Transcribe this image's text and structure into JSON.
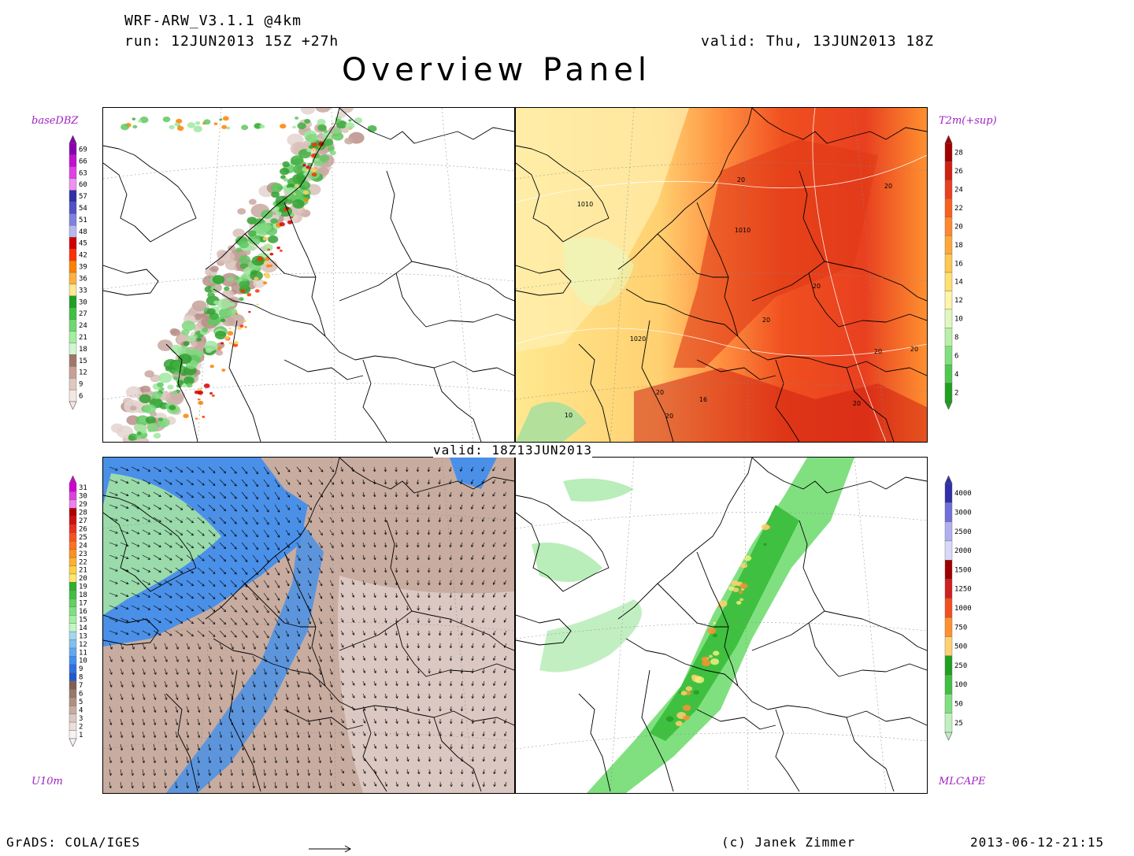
{
  "header": {
    "model": "WRF-ARW_V3.1.1 @4km",
    "run": "run: 12JUN2013 15Z +27h",
    "valid": "valid: Thu, 13JUN2013 18Z",
    "title": "Overview Panel"
  },
  "valid_mid": "valid: 18Z13JUN2013",
  "panels": {
    "top_left": {
      "var_label": "baseDBZ"
    },
    "top_right": {
      "var_label": "T2m(+sup)",
      "isobar_labels": [
        "1010",
        "1010",
        "1020",
        "20",
        "20",
        "20",
        "20",
        "20",
        "20",
        "20",
        "20",
        "20",
        "10",
        "16"
      ]
    },
    "bottom_left": {
      "var_label": "U10m"
    },
    "bottom_right": {
      "var_label": "MLCAPE"
    }
  },
  "colorbars": {
    "dbz": {
      "labels": [
        "69",
        "66",
        "63",
        "60",
        "57",
        "54",
        "51",
        "48",
        "45",
        "42",
        "39",
        "36",
        "33",
        "30",
        "27",
        "24",
        "21",
        "18",
        "15",
        "12",
        "9",
        "6"
      ],
      "colors": [
        "#8a00b0",
        "#c010d0",
        "#e040e8",
        "#f090f0",
        "#3030a8",
        "#5050c8",
        "#8080e0",
        "#b8b8f0",
        "#d00000",
        "#ff3000",
        "#ff8000",
        "#ffb040",
        "#ffe890",
        "#20a020",
        "#40c040",
        "#70d870",
        "#a0f0a0",
        "#d0f8d0",
        "#a07868",
        "#c8a098",
        "#e0c8c0",
        "#f4e8e4"
      ]
    },
    "t2m": {
      "labels": [
        "28",
        "26",
        "24",
        "22",
        "20",
        "18",
        "16",
        "14",
        "12",
        "10",
        "8",
        "6",
        "4",
        "2"
      ],
      "colors": [
        "#a00000",
        "#d02010",
        "#e84020",
        "#f86020",
        "#ff8830",
        "#ffa838",
        "#ffc850",
        "#ffe070",
        "#fff4a8",
        "#e0f8c0",
        "#b8f0a8",
        "#80e080",
        "#50c850",
        "#20a020"
      ]
    },
    "u10": {
      "labels": [
        "31",
        "30",
        "29",
        "28",
        "27",
        "26",
        "25",
        "24",
        "23",
        "22",
        "21",
        "20",
        "19",
        "18",
        "17",
        "16",
        "15",
        "14",
        "13",
        "12",
        "11",
        "10",
        "9",
        "8",
        "7",
        "6",
        "5",
        "4",
        "3",
        "2",
        "1"
      ],
      "colors": [
        "#d000d0",
        "#e040e0",
        "#f080f0",
        "#b00000",
        "#d01010",
        "#e83020",
        "#f85020",
        "#ff7020",
        "#ff9020",
        "#ffb030",
        "#ffd040",
        "#ffe870",
        "#30b030",
        "#40c040",
        "#60d060",
        "#80e080",
        "#a0f0a0",
        "#c0f8c0",
        "#a0d8f0",
        "#80c0f0",
        "#60a8f0",
        "#4090f0",
        "#3070e0",
        "#2058d0",
        "#806050",
        "#987868",
        "#b09080",
        "#c8aca0",
        "#dcc8c0",
        "#ece0dc",
        "#f8f2f0"
      ]
    },
    "cape": {
      "labels": [
        "4000",
        "3000",
        "2500",
        "2000",
        "1500",
        "1250",
        "1000",
        "750",
        "500",
        "250",
        "100",
        "50",
        "25"
      ],
      "colors": [
        "#3030a8",
        "#7070d8",
        "#b0b0f0",
        "#d8d8f8",
        "#a00000",
        "#d02020",
        "#f05020",
        "#ff9030",
        "#ffd070",
        "#20a020",
        "#40c040",
        "#80e080",
        "#c0f0c0"
      ]
    }
  },
  "footer": {
    "left": "GrADS: COLA/IGES",
    "center": "(c) Janek Zimmer",
    "right": "2013-06-12-21:15"
  }
}
